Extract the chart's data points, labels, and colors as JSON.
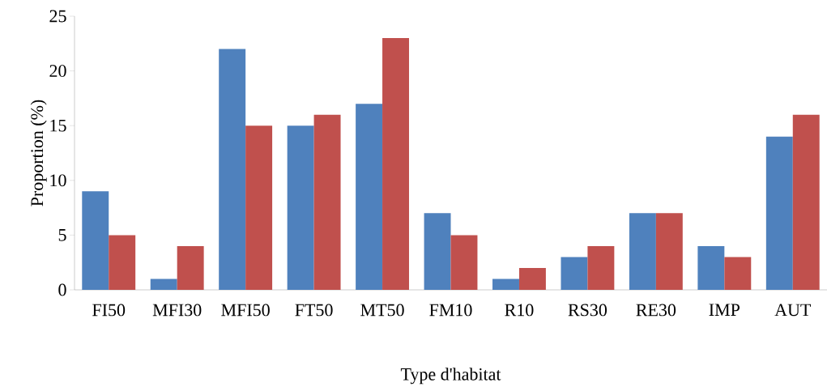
{
  "chart_data": {
    "type": "bar",
    "xlabel": "Type d'habitat",
    "ylabel": "Proportion (%)",
    "categories": [
      "FI50",
      "MFI30",
      "MFI50",
      "FT50",
      "MT50",
      "FM10",
      "R10",
      "RS30",
      "RE30",
      "IMP",
      "AUT"
    ],
    "series": [
      {
        "color": "#4f81bd",
        "values": [
          9,
          1,
          22,
          15,
          17,
          7,
          1,
          3,
          7,
          4,
          14
        ]
      },
      {
        "color": "#c0504d",
        "values": [
          5,
          4,
          15,
          16,
          23,
          5,
          2,
          4,
          7,
          3,
          16
        ]
      }
    ],
    "ylim": [
      0,
      25
    ],
    "yticks": [
      0,
      5,
      10,
      15,
      20,
      25
    ],
    "grid": false,
    "legend": false
  }
}
